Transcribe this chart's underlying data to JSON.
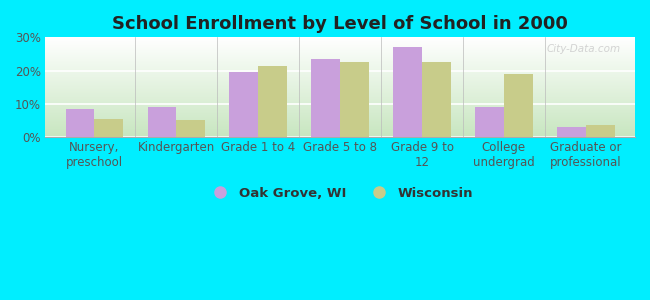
{
  "title": "School Enrollment by Level of School in 2000",
  "categories": [
    "Nursery,\npreschool",
    "Kindergarten",
    "Grade 1 to 4",
    "Grade 5 to 8",
    "Grade 9 to\n12",
    "College\nundergrad",
    "Graduate or\nprofessional"
  ],
  "oak_grove": [
    8.5,
    9.0,
    19.5,
    23.5,
    27.0,
    9.0,
    3.0
  ],
  "wisconsin": [
    5.5,
    5.0,
    21.5,
    22.5,
    22.5,
    19.0,
    3.5
  ],
  "oak_grove_color": "#c9a0dc",
  "wisconsin_color": "#c8cc8a",
  "background_outer": "#00eeff",
  "background_grad_top": "#ffffff",
  "background_grad_bottom": "#c8e6c0",
  "ylim": [
    0,
    30
  ],
  "yticks": [
    0,
    10,
    20,
    30
  ],
  "ytick_labels": [
    "0%",
    "10%",
    "20%",
    "30%"
  ],
  "legend_labels": [
    "Oak Grove, WI",
    "Wisconsin"
  ],
  "title_fontsize": 13,
  "tick_fontsize": 8.5,
  "legend_fontsize": 9.5,
  "bar_width": 0.35,
  "watermark": "City-Data.com"
}
